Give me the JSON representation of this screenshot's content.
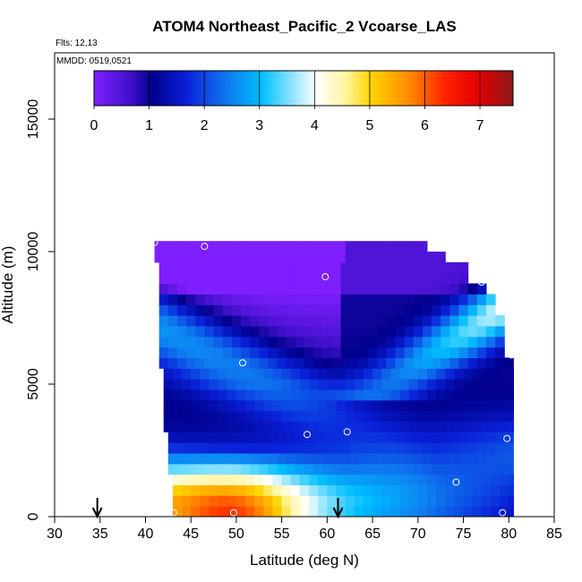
{
  "chart_data": {
    "type": "heatmap",
    "title": "ATOM4 Northeast_Pacific_2 Vcoarse_LAS",
    "subtitle_flights": "Flts: 12,13",
    "subtitle_dates": "MMDD: 0519,0521",
    "xlabel": "Latitude (deg N)",
    "ylabel": "Altitude (m)",
    "xlim": [
      30,
      85
    ],
    "ylim": [
      0,
      17500
    ],
    "x_ticks": [
      "30",
      "35",
      "40",
      "45",
      "50",
      "55",
      "60",
      "65",
      "70",
      "75",
      "80",
      "85"
    ],
    "y_ticks": [
      "0",
      "5000",
      "10000",
      "15000"
    ],
    "colorbar": {
      "range": [
        0,
        7.6
      ],
      "ticks": [
        "0",
        "1",
        "2",
        "3",
        "4",
        "5",
        "6",
        "7"
      ],
      "colors": [
        "#7f1fff",
        "#00008b",
        "#0a1fd8",
        "#00bfff",
        "#ffffff",
        "#ffe640",
        "#ff8c00",
        "#ff0000",
        "#8b1a1a"
      ]
    },
    "profiles": [
      {
        "lat": 42.0,
        "alt_top": 10300,
        "note": "max ~7 near surface south"
      },
      {
        "lat": 60.0,
        "alt_top": 10300
      },
      {
        "lat": 70.5,
        "alt_top": 10300
      },
      {
        "lat": 79.5,
        "alt_top": 6000
      }
    ],
    "field_summary": "Highest values (6-7) near surface 43-53N; values decrease with altitude and northward; minimum (~0) aloft and in upper troposphere",
    "points": [
      {
        "lat": 41.0,
        "alt": 10350
      },
      {
        "lat": 46.5,
        "alt": 10200
      },
      {
        "lat": 69.7,
        "alt": 10700
      },
      {
        "lat": 59.8,
        "alt": 9050
      },
      {
        "lat": 77.0,
        "alt": 8850
      },
      {
        "lat": 50.7,
        "alt": 5800
      },
      {
        "lat": 80.3,
        "alt": 6100
      },
      {
        "lat": 62.2,
        "alt": 3200
      },
      {
        "lat": 57.8,
        "alt": 3100
      },
      {
        "lat": 79.8,
        "alt": 2950
      },
      {
        "lat": 74.2,
        "alt": 1300
      },
      {
        "lat": 43.1,
        "alt": 150
      },
      {
        "lat": 49.7,
        "alt": 150
      },
      {
        "lat": 57.5,
        "alt": 150
      },
      {
        "lat": 79.3,
        "alt": 150
      }
    ],
    "arrows": [
      {
        "lat": 34.7
      },
      {
        "lat": 61.2
      }
    ]
  }
}
